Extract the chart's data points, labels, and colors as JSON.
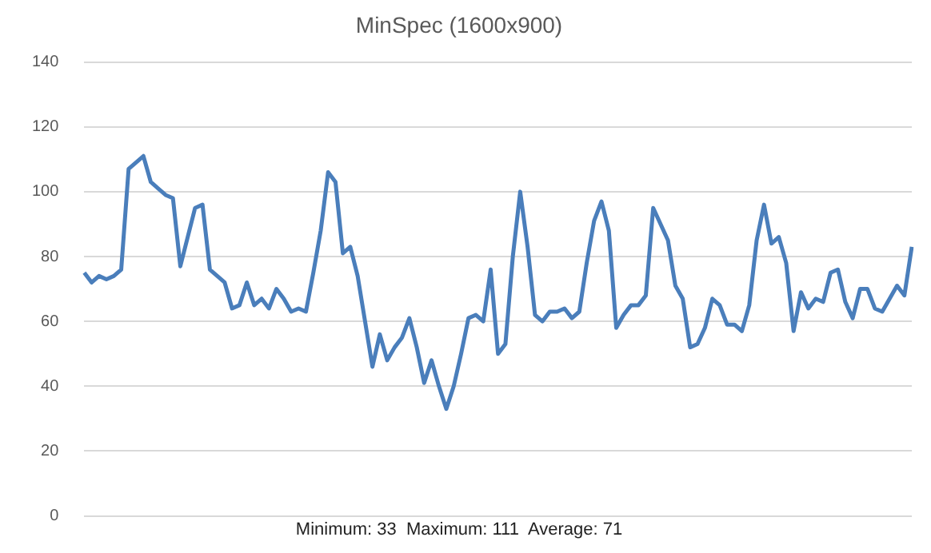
{
  "chart_data": {
    "type": "line",
    "title": "MinSpec (1600x900)",
    "annotations": [
      "Minimum: 33  Maximum: 111  Average: 71"
    ],
    "categories": [
      null,
      null,
      null,
      null,
      null,
      null,
      null,
      null,
      null,
      null,
      null,
      null,
      null,
      null,
      null,
      null,
      null,
      null,
      null,
      null,
      null,
      null,
      null,
      null,
      null,
      null,
      null,
      null,
      null,
      null,
      null,
      null,
      null,
      null,
      null,
      null,
      null,
      null,
      null,
      null,
      null,
      null,
      null,
      null,
      null,
      null,
      null,
      null,
      null,
      null,
      null,
      null,
      null,
      null,
      null,
      null,
      null,
      null,
      null,
      null,
      null,
      null,
      null,
      null,
      null,
      null,
      null,
      null,
      null,
      null,
      null,
      null,
      null,
      null,
      null,
      null,
      null,
      null,
      null,
      null,
      null,
      null,
      null,
      null,
      null,
      null,
      null,
      null,
      null,
      null,
      null,
      null,
      null,
      null,
      null,
      null,
      null,
      null,
      null,
      null,
      null,
      null,
      null,
      null,
      null,
      null,
      null,
      null,
      null,
      null,
      null,
      null,
      null
    ],
    "series": [
      {
        "color": "#4a7ebb",
        "values": [
          75,
          72,
          74,
          73,
          74,
          76,
          107,
          109,
          111,
          103,
          101,
          99,
          98,
          77,
          86,
          95,
          96,
          76,
          74,
          72,
          64,
          65,
          72,
          65,
          67,
          64,
          70,
          67,
          63,
          64,
          63,
          75,
          88,
          106,
          103,
          81,
          83,
          74,
          60,
          46,
          56,
          48,
          52,
          55,
          61,
          52,
          41,
          48,
          40,
          33,
          40,
          50,
          61,
          62,
          60,
          76,
          50,
          53,
          80,
          100,
          83,
          62,
          60,
          63,
          63,
          64,
          61,
          63,
          78,
          91,
          97,
          88,
          58,
          62,
          65,
          65,
          68,
          95,
          90,
          85,
          71,
          67,
          52,
          53,
          58,
          67,
          65,
          59,
          59,
          57,
          65,
          85,
          96,
          84,
          86,
          78,
          57,
          69,
          64,
          67,
          66,
          75,
          76,
          66,
          61,
          70,
          70,
          64,
          63,
          67,
          71,
          68,
          83
        ]
      }
    ],
    "ylim": [
      0,
      140
    ],
    "yticks": [
      0,
      20,
      40,
      60,
      80,
      100,
      120,
      140
    ],
    "grid": "y",
    "legend": false,
    "tick_labels": "y",
    "marker": "none",
    "line_style": "solid"
  }
}
